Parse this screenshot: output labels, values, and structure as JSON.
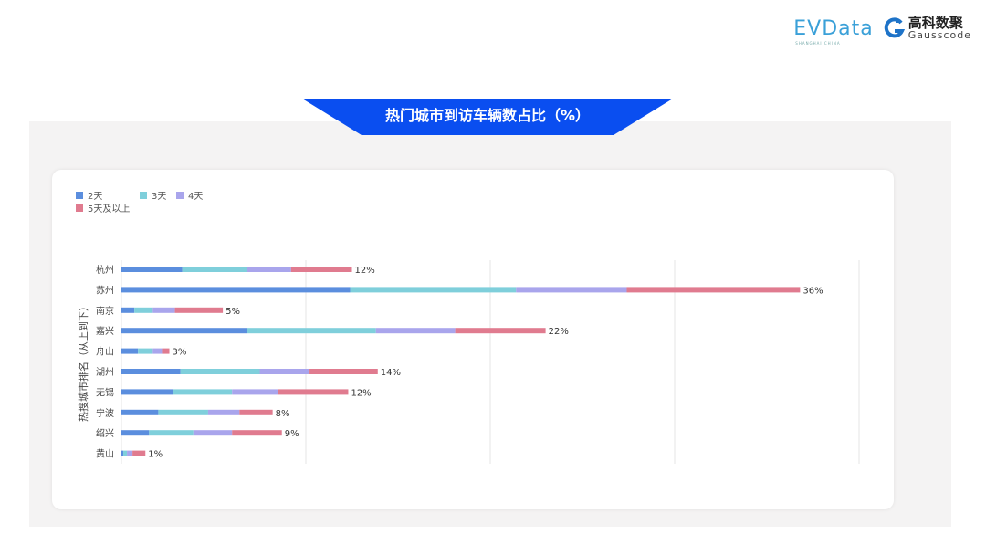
{
  "logos": {
    "evdata": "EVData",
    "evdata_sub": "SHANGHAI CHINA",
    "gauss_cn": "高科数聚",
    "gauss_en": "Gausscode"
  },
  "banner": "热门城市到访车辆数占比（%）",
  "chart_data": {
    "type": "bar",
    "orientation": "horizontal",
    "stacked": true,
    "title": "热门城市到访车辆数占比（%）",
    "ylabel": "热搜城市排名（从上到下）",
    "xlabel": "",
    "xlim": [
      0,
      40
    ],
    "grid": true,
    "legend": "top-left",
    "categories": [
      "杭州",
      "苏州",
      "南京",
      "嘉兴",
      "舟山",
      "湖州",
      "无锡",
      "宁波",
      "绍兴",
      "黄山"
    ],
    "series": [
      {
        "name": "2天",
        "color": "#5b8ede",
        "values": [
          3.3,
          12.4,
          0.7,
          6.8,
          0.9,
          3.2,
          2.8,
          2.0,
          1.5,
          0.1
        ]
      },
      {
        "name": "3天",
        "color": "#7fcfdb",
        "values": [
          3.5,
          9.0,
          1.0,
          7.0,
          0.8,
          4.3,
          3.2,
          2.7,
          2.4,
          0.2
        ]
      },
      {
        "name": "4天",
        "color": "#a9a5ec",
        "values": [
          2.4,
          6.0,
          1.2,
          4.3,
          0.5,
          2.7,
          2.5,
          1.7,
          2.1,
          0.3
        ]
      },
      {
        "name": "5天及以上",
        "color": "#e07b8f",
        "values": [
          3.3,
          9.4,
          2.6,
          4.9,
          0.4,
          3.7,
          3.8,
          1.8,
          2.7,
          0.7
        ]
      }
    ],
    "totals_labels": [
      "12%",
      "36%",
      "5%",
      "22%",
      "3%",
      "14%",
      "12%",
      "8%",
      "9%",
      "1%"
    ]
  }
}
